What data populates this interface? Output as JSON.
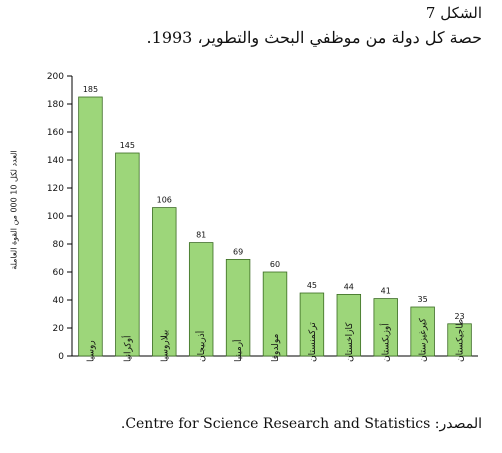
{
  "figure": {
    "label": "الشكل 7",
    "title": "حصة كل دولة من موظفي البحث والتطوير، 1993.",
    "source": "المصدر: Centre for Science Research and Statistics."
  },
  "chart_data": {
    "type": "bar",
    "categories": [
      "روسيا",
      "أوكرانيا",
      "بيلاروسيا",
      "أذربيجان",
      "أرمينيا",
      "مولدوفا",
      "تركمنستان",
      "كازاخستان",
      "أوزبكستان",
      "كيرغيزستان",
      "طاجيكستان"
    ],
    "values": [
      185,
      145,
      106,
      81,
      69,
      60,
      45,
      44,
      41,
      35,
      23
    ],
    "ylabel": "العدد لكل 10 000 من القوة العاملة",
    "ylim": [
      0,
      200
    ],
    "yticks": [
      0,
      20,
      40,
      60,
      80,
      100,
      120,
      140,
      160,
      180,
      200
    ],
    "bar_color": "#9dd67a",
    "bar_stroke": "#3a6b22",
    "grid": false
  }
}
